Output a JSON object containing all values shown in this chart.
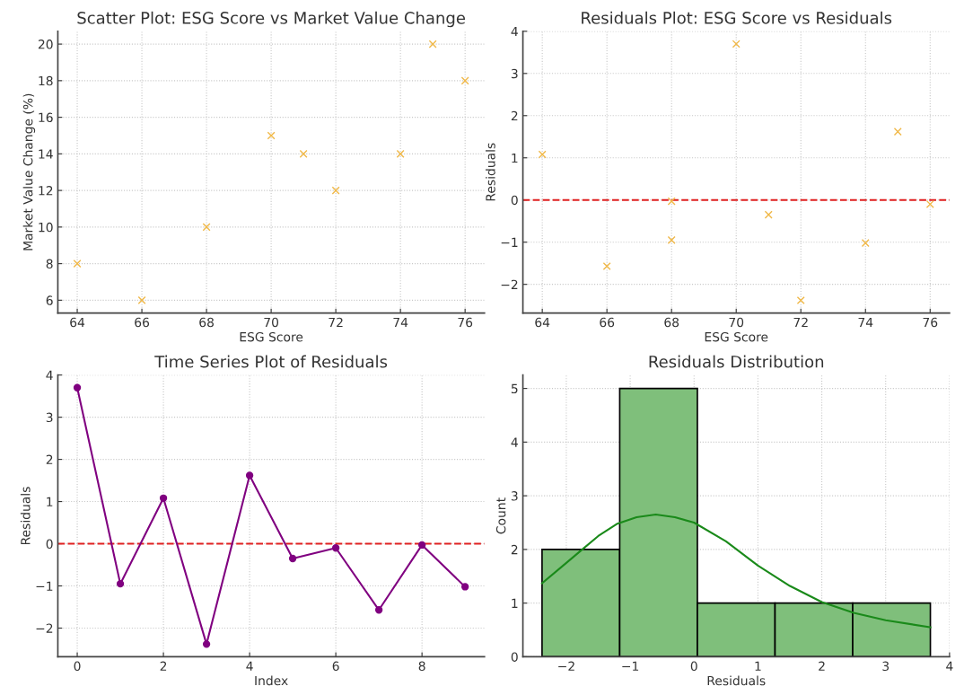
{
  "chart_data": [
    {
      "type": "scatter",
      "title": "Scatter Plot: ESG Score vs Market Value Change",
      "xlabel": "ESG Score",
      "ylabel": "Market Value Change (%)",
      "x": [
        64,
        66,
        68,
        70,
        71,
        72,
        74,
        75,
        76
      ],
      "values": [
        8,
        6,
        10,
        15,
        14,
        12,
        14,
        20,
        18
      ],
      "color": "#f0b848",
      "marker": "cross",
      "xlim": [
        63.4,
        76.6
      ],
      "ylim": [
        5.3,
        20.7
      ],
      "xticks": [
        64,
        66,
        68,
        70,
        72,
        74,
        76
      ],
      "yticks": [
        6,
        8,
        10,
        12,
        14,
        16,
        18,
        20
      ],
      "grid": true
    },
    {
      "type": "scatter",
      "title": "Residuals Plot: ESG Score vs Residuals",
      "xlabel": "ESG Score",
      "ylabel": "Residuals",
      "x": [
        64,
        66,
        68,
        68,
        70,
        71,
        72,
        74,
        75,
        76
      ],
      "values": [
        1.08,
        -1.57,
        -0.03,
        -0.95,
        3.7,
        -0.35,
        -2.38,
        -1.02,
        1.62,
        -0.1
      ],
      "color": "#f0b848",
      "marker": "cross",
      "xlim": [
        63.4,
        76.6
      ],
      "ylim": [
        -2.68,
        4.0
      ],
      "xticks": [
        64,
        66,
        68,
        70,
        72,
        74,
        76
      ],
      "yticks": [
        -2,
        -1,
        0,
        1,
        2,
        3,
        4
      ],
      "grid": true,
      "ref_lines": [
        {
          "axis": "y",
          "value": 0,
          "color": "#e02020",
          "line_style": "dashed"
        }
      ]
    },
    {
      "type": "line",
      "title": "Time Series Plot of Residuals",
      "xlabel": "Index",
      "ylabel": "Residuals",
      "x": [
        0,
        1,
        2,
        3,
        4,
        5,
        6,
        7,
        8,
        9
      ],
      "values": [
        3.7,
        -0.95,
        1.08,
        -2.38,
        1.62,
        -0.35,
        -0.1,
        -1.57,
        -0.03,
        -1.02
      ],
      "color": "#800080",
      "marker": "circle",
      "line_style": "solid",
      "xlim": [
        -0.45,
        9.45
      ],
      "ylim": [
        -2.68,
        4.0
      ],
      "xticks": [
        0,
        2,
        4,
        6,
        8
      ],
      "yticks": [
        -2,
        -1,
        0,
        1,
        2,
        3,
        4
      ],
      "grid": true,
      "ref_lines": [
        {
          "axis": "y",
          "value": 0,
          "color": "#e02020",
          "line_style": "dashed"
        }
      ]
    },
    {
      "type": "histogram",
      "title": "Residuals Distribution",
      "xlabel": "Residuals",
      "ylabel": "Count",
      "xlim": [
        -2.68,
        4.0
      ],
      "ylim": [
        0,
        5.25
      ],
      "xticks": [
        -2,
        -1,
        0,
        1,
        2,
        3,
        4
      ],
      "yticks": [
        0,
        1,
        2,
        3,
        4,
        5
      ],
      "grid": true,
      "series": [
        {
          "type": "histogram",
          "bins": [
            -2.38,
            -1.164,
            0.052,
            1.268,
            2.484,
            3.7
          ],
          "values": [
            2,
            5,
            1,
            1,
            1
          ],
          "color": "#7fbf7b"
        },
        {
          "type": "line",
          "x": [
            -2.38,
            -2.0,
            -1.75,
            -1.5,
            -1.2,
            -0.9,
            -0.6,
            -0.3,
            0,
            0.5,
            1.0,
            1.5,
            2.0,
            2.5,
            3.0,
            3.7
          ],
          "values": [
            1.37,
            1.75,
            2.0,
            2.25,
            2.48,
            2.6,
            2.65,
            2.6,
            2.5,
            2.15,
            1.7,
            1.32,
            1.02,
            0.82,
            0.68,
            0.55
          ],
          "color": "#1a8a1a"
        }
      ]
    }
  ]
}
